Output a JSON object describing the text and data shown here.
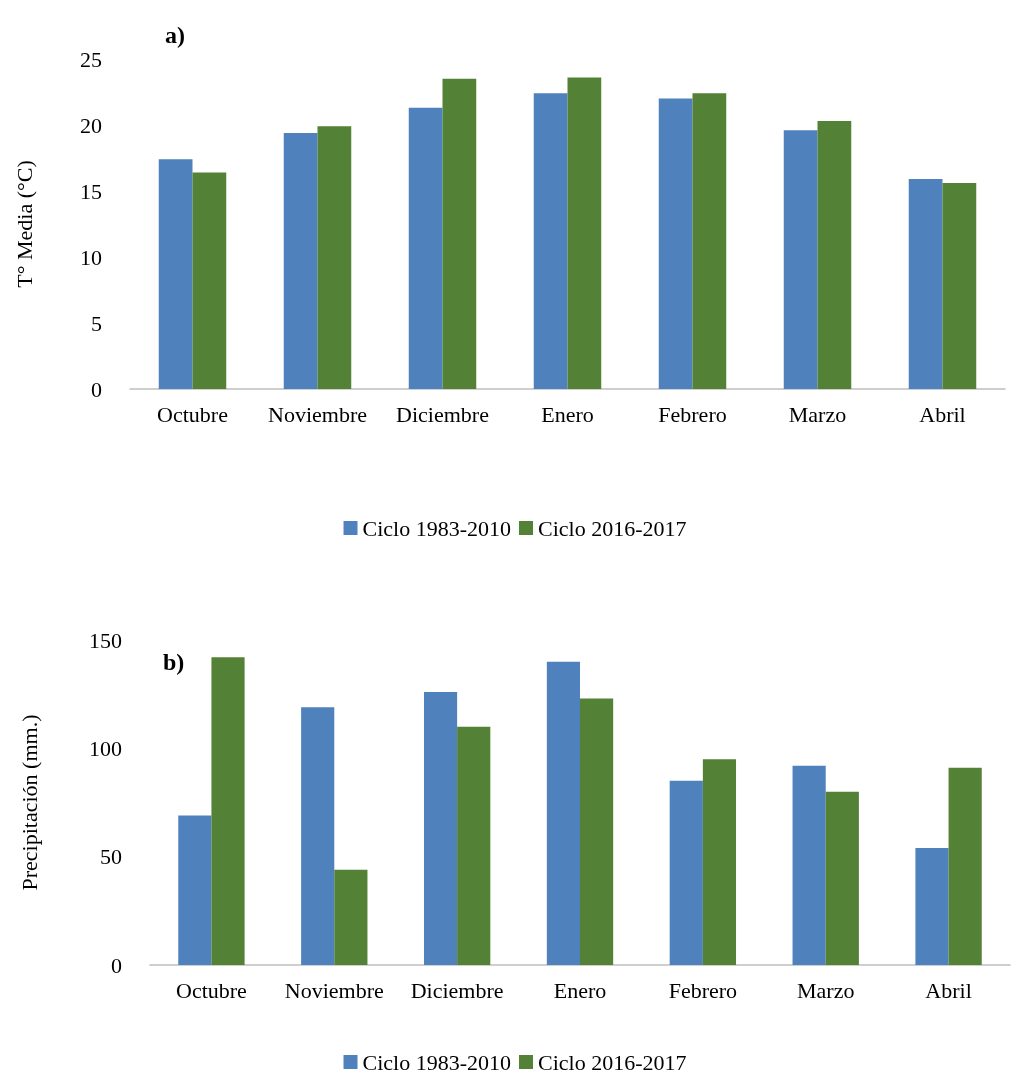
{
  "chart_data": [
    {
      "type": "bar",
      "title": "a)",
      "ylabel": "T° Media (°C)",
      "categories": [
        "Octubre",
        "Noviembre",
        "Diciembre",
        "Enero",
        "Febrero",
        "Marzo",
        "Abril"
      ],
      "series": [
        {
          "name": "Ciclo 1983-2010",
          "color": "#4f81bd",
          "values": [
            17.4,
            19.4,
            21.3,
            22.4,
            22.0,
            19.6,
            15.9
          ]
        },
        {
          "name": "Ciclo 2016-2017",
          "color": "#538135",
          "values": [
            16.4,
            19.9,
            23.5,
            23.6,
            22.4,
            20.3,
            15.6
          ]
        }
      ],
      "ylim": [
        0,
        25
      ],
      "yticks": [
        0,
        5,
        10,
        15,
        20,
        25
      ],
      "grid": false,
      "legend": "bottom"
    },
    {
      "type": "bar",
      "title": "b)",
      "ylabel": "Precipitación (mm.)",
      "categories": [
        "Octubre",
        "Noviembre",
        "Diciembre",
        "Enero",
        "Febrero",
        "Marzo",
        "Abril"
      ],
      "series": [
        {
          "name": "Ciclo 1983-2010",
          "color": "#4f81bd",
          "values": [
            69,
            119,
            126,
            140,
            85,
            92,
            54
          ]
        },
        {
          "name": "Ciclo 2016-2017",
          "color": "#538135",
          "values": [
            142,
            44,
            110,
            123,
            95,
            80,
            91
          ]
        }
      ],
      "ylim": [
        0,
        150
      ],
      "yticks": [
        0,
        50,
        100,
        150
      ],
      "grid": false,
      "legend": "bottom"
    }
  ]
}
